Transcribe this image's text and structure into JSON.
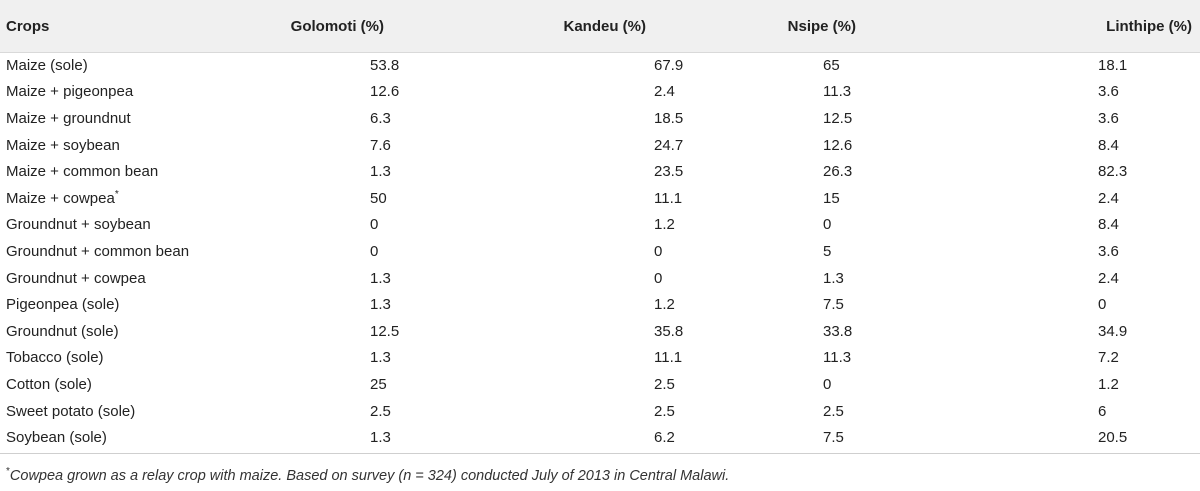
{
  "table": {
    "headers": [
      "Crops",
      "Golomoti (%)",
      "Kandeu (%)",
      "Nsipe (%)",
      "Linthipe (%)"
    ],
    "rows": [
      {
        "crop": "Maize (sole)",
        "mark": "",
        "golomoti": "53.8",
        "kandeu": "67.9",
        "nsipe": "65",
        "linthipe": "18.1"
      },
      {
        "crop": "Maize + pigeonpea",
        "mark": "",
        "golomoti": "12.6",
        "kandeu": "2.4",
        "nsipe": "11.3",
        "linthipe": "3.6"
      },
      {
        "crop": "Maize + groundnut",
        "mark": "",
        "golomoti": "6.3",
        "kandeu": "18.5",
        "nsipe": "12.5",
        "linthipe": "3.6"
      },
      {
        "crop": "Maize + soybean",
        "mark": "",
        "golomoti": "7.6",
        "kandeu": "24.7",
        "nsipe": "12.6",
        "linthipe": "8.4"
      },
      {
        "crop": "Maize + common bean",
        "mark": "",
        "golomoti": "1.3",
        "kandeu": "23.5",
        "nsipe": "26.3",
        "linthipe": "82.3"
      },
      {
        "crop": "Maize + cowpea",
        "mark": "*",
        "golomoti": "50",
        "kandeu": "11.1",
        "nsipe": "15",
        "linthipe": "2.4"
      },
      {
        "crop": "Groundnut + soybean",
        "mark": "",
        "golomoti": "0",
        "kandeu": "1.2",
        "nsipe": "0",
        "linthipe": "8.4"
      },
      {
        "crop": "Groundnut + common bean",
        "mark": "",
        "golomoti": "0",
        "kandeu": "0",
        "nsipe": "5",
        "linthipe": "3.6"
      },
      {
        "crop": "Groundnut + cowpea",
        "mark": "",
        "golomoti": "1.3",
        "kandeu": "0",
        "nsipe": "1.3",
        "linthipe": "2.4"
      },
      {
        "crop": "Pigeonpea (sole)",
        "mark": "",
        "golomoti": "1.3",
        "kandeu": "1.2",
        "nsipe": "7.5",
        "linthipe": "0"
      },
      {
        "crop": "Groundnut (sole)",
        "mark": "",
        "golomoti": "12.5",
        "kandeu": "35.8",
        "nsipe": "33.8",
        "linthipe": "34.9"
      },
      {
        "crop": "Tobacco (sole)",
        "mark": "",
        "golomoti": "1.3",
        "kandeu": "11.1",
        "nsipe": "11.3",
        "linthipe": "7.2"
      },
      {
        "crop": "Cotton (sole)",
        "mark": "",
        "golomoti": "25",
        "kandeu": "2.5",
        "nsipe": "0",
        "linthipe": "1.2"
      },
      {
        "crop": "Sweet potato (sole)",
        "mark": "",
        "golomoti": "2.5",
        "kandeu": "2.5",
        "nsipe": "2.5",
        "linthipe": "6"
      },
      {
        "crop": "Soybean (sole)",
        "mark": "",
        "golomoti": "1.3",
        "kandeu": "6.2",
        "nsipe": "7.5",
        "linthipe": "20.5"
      }
    ]
  },
  "footnote": {
    "mark": "*",
    "text": "Cowpea grown as a relay crop with maize. Based on survey (n = 324) conducted July of 2013 in Central Malawi."
  }
}
